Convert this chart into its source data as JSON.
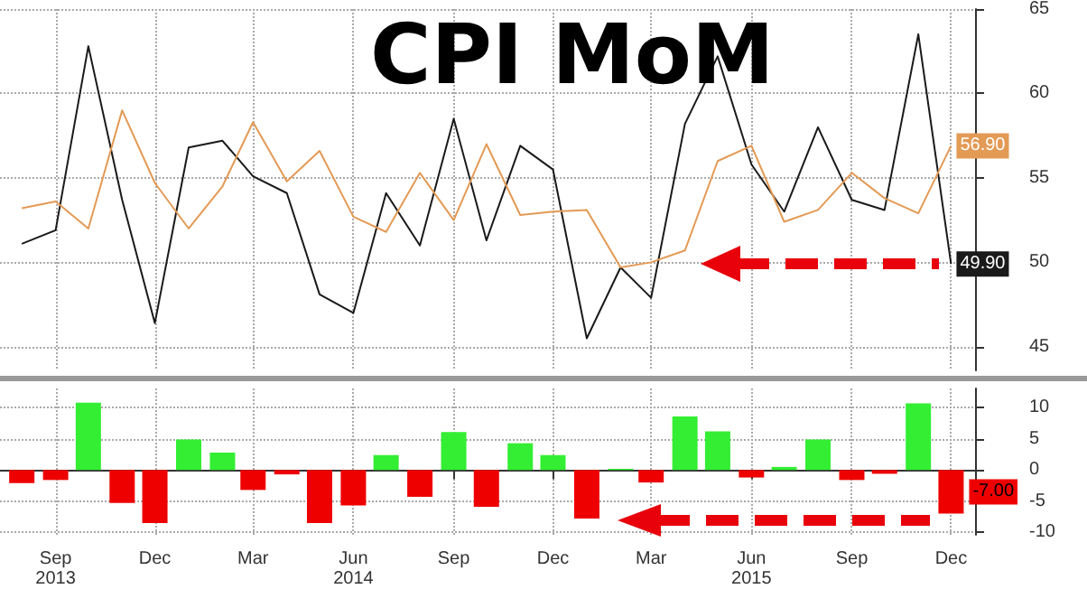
{
  "chart_data": [
    {
      "type": "line",
      "title": "CPI MoM",
      "x": [
        "2013-08",
        "2013-09",
        "2013-10",
        "2013-11",
        "2013-12",
        "2014-01",
        "2014-02",
        "2014-03",
        "2014-04",
        "2014-05",
        "2014-06",
        "2014-07",
        "2014-08",
        "2014-09",
        "2014-10",
        "2014-11",
        "2014-12",
        "2015-01",
        "2015-02",
        "2015-03",
        "2015-04",
        "2015-05",
        "2015-06",
        "2015-07",
        "2015-08",
        "2015-09",
        "2015-10",
        "2015-11",
        "2015-12"
      ],
      "series": [
        {
          "color": "#1a1a1a",
          "values": [
            51.1,
            51.9,
            62.8,
            53.7,
            46.4,
            56.8,
            57.2,
            55.1,
            54.1,
            48.1,
            47.0,
            54.1,
            51.0,
            58.5,
            51.3,
            56.9,
            55.5,
            45.5,
            49.7,
            47.9,
            58.2,
            62.2,
            55.8,
            53.0,
            58.0,
            53.7,
            53.1,
            63.5,
            49.9
          ],
          "value_labels": [
            null,
            null,
            null,
            null,
            null,
            null,
            null,
            null,
            null,
            null,
            null,
            null,
            null,
            null,
            null,
            null,
            null,
            null,
            null,
            null,
            null,
            null,
            null,
            null,
            null,
            null,
            null,
            null,
            "49.90"
          ]
        },
        {
          "color": "#e39a55",
          "values": [
            53.2,
            53.6,
            52.0,
            59.0,
            54.7,
            52.0,
            54.5,
            58.3,
            54.8,
            56.6,
            52.7,
            51.8,
            55.3,
            52.5,
            57.0,
            52.8,
            53.0,
            53.1,
            49.7,
            50.0,
            50.7,
            56.0,
            56.9,
            52.4,
            53.1,
            55.3,
            53.8,
            52.9,
            56.9
          ],
          "value_labels": [
            null,
            null,
            null,
            null,
            null,
            null,
            null,
            null,
            null,
            null,
            null,
            null,
            null,
            null,
            null,
            null,
            null,
            null,
            null,
            null,
            null,
            null,
            null,
            null,
            null,
            null,
            null,
            null,
            "56.90"
          ]
        }
      ],
      "xlim": [
        "2013-07-12",
        "2015-12-23"
      ],
      "xticks": [
        {
          "value": "2013-09",
          "label": null
        },
        {
          "value": "2013-12",
          "label": null
        },
        {
          "value": "2014-03",
          "label": null
        },
        {
          "value": "2014-06",
          "label": null
        },
        {
          "value": "2014-09",
          "label": null
        },
        {
          "value": "2014-12",
          "label": null
        },
        {
          "value": "2015-03",
          "label": null
        },
        {
          "value": "2015-06",
          "label": null
        },
        {
          "value": "2015-09",
          "label": null
        },
        {
          "value": "2015-12",
          "label": null
        }
      ],
      "ylim": [
        43.6,
        65
      ],
      "yticks": [
        45,
        50,
        55,
        60,
        65
      ],
      "grid": true,
      "tick_labels": "y"
    },
    {
      "type": "bar",
      "x": [
        "2013-08",
        "2013-09",
        "2013-10",
        "2013-11",
        "2013-12",
        "2014-01",
        "2014-02",
        "2014-03",
        "2014-04",
        "2014-05",
        "2014-06",
        "2014-07",
        "2014-08",
        "2014-09",
        "2014-10",
        "2014-11",
        "2014-12",
        "2015-01",
        "2015-02",
        "2015-03",
        "2015-04",
        "2015-05",
        "2015-06",
        "2015-07",
        "2015-08",
        "2015-09",
        "2015-10",
        "2015-11",
        "2015-12"
      ],
      "values": [
        -2.1,
        -1.6,
        10.8,
        -5.3,
        -8.5,
        4.9,
        2.8,
        -3.2,
        -0.7,
        -8.5,
        -5.7,
        2.4,
        -4.3,
        6.1,
        -5.9,
        4.3,
        2.4,
        -7.8,
        0.2,
        -2.0,
        8.6,
        6.2,
        -1.2,
        0.5,
        4.9,
        -1.6,
        -0.6,
        10.7,
        -7.0
      ],
      "colors": [
        "#ee0000",
        "#ee0000",
        "#33ee33",
        "#ee0000",
        "#ee0000",
        "#33ee33",
        "#33ee33",
        "#ee0000",
        "#ee0000",
        "#ee0000",
        "#ee0000",
        "#33ee33",
        "#ee0000",
        "#33ee33",
        "#ee0000",
        "#33ee33",
        "#33ee33",
        "#ee0000",
        "#33ee33",
        "#ee0000",
        "#33ee33",
        "#33ee33",
        "#ee0000",
        "#33ee33",
        "#33ee33",
        "#ee0000",
        "#ee0000",
        "#33ee33",
        "#ee0000"
      ],
      "value_labels": [
        null,
        null,
        null,
        null,
        null,
        null,
        null,
        null,
        null,
        null,
        null,
        null,
        null,
        null,
        null,
        null,
        null,
        null,
        null,
        null,
        null,
        null,
        null,
        null,
        null,
        null,
        null,
        null,
        "-7.00"
      ],
      "xlim": [
        "2013-07-12",
        "2015-12-23"
      ],
      "xticks": [
        {
          "value": "2013-09",
          "label": "Sep\n2013"
        },
        {
          "value": "2013-12",
          "label": "Dec"
        },
        {
          "value": "2014-03",
          "label": "Mar"
        },
        {
          "value": "2014-06",
          "label": "Jun\n2014"
        },
        {
          "value": "2014-09",
          "label": "Sep"
        },
        {
          "value": "2014-12",
          "label": "Dec"
        },
        {
          "value": "2015-03",
          "label": "Mar"
        },
        {
          "value": "2015-06",
          "label": "Jun\n2015"
        },
        {
          "value": "2015-09",
          "label": "Sep"
        },
        {
          "value": "2015-12",
          "label": "Dec"
        }
      ],
      "ylim": [
        -10.4,
        13.1
      ],
      "yticks": [
        -10,
        -5,
        0,
        5,
        10
      ],
      "grid": true
    }
  ]
}
